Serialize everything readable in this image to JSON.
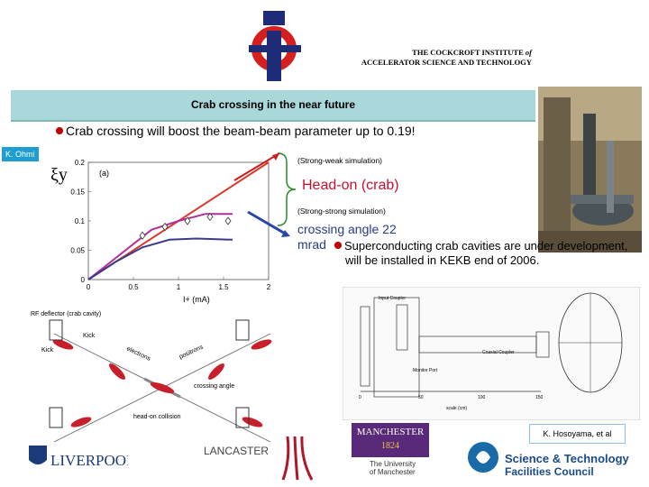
{
  "institute": {
    "line1_a": "THE COCKCROFT INSTITUTE",
    "line1_b": "of",
    "line2": "ACCELERATOR SCIENCE AND TECHNOLOGY"
  },
  "slide": {
    "title": "Crab crossing in the near future",
    "bullet1": "Crab crossing will boost the beam-beam parameter up to 0.19!",
    "author_tag": "K. Ohmi",
    "strong_weak": "(Strong-weak simulation)",
    "headon": "Head-on (crab)",
    "strong_strong": "(Strong-strong simulation)",
    "crossing_angle": "crossing angle 22 mrad",
    "bullet2": "Superconducting crab cavities are under development, will be installed in KEKB end of 2006.",
    "credit": "K. Hosoyama, et al"
  },
  "plot": {
    "panel_label": "(a)",
    "ylabel": "ξy",
    "xlabel": "I+ (mA)",
    "x_ticks": [
      "0",
      "0.5",
      "1",
      "1.5",
      "2"
    ],
    "y_ticks": [
      "0",
      "0.05",
      "0.1",
      "0.15",
      "0.2"
    ],
    "xlim": [
      0,
      2
    ],
    "ylim": [
      0,
      0.2
    ],
    "series": [
      {
        "color": "#d83a2c",
        "x": [
          0,
          2
        ],
        "y": [
          0,
          0.2
        ]
      },
      {
        "color": "#b0309a",
        "x": [
          0,
          0.7,
          1.0,
          1.3,
          1.6
        ],
        "y": [
          0,
          0.085,
          0.1,
          0.112,
          0.112
        ]
      },
      {
        "color": "#3c3c8c",
        "x": [
          0,
          0.3,
          0.6,
          0.9,
          1.2,
          1.6
        ],
        "y": [
          0,
          0.03,
          0.055,
          0.068,
          0.07,
          0.068
        ]
      }
    ],
    "markers": {
      "x": [
        0.6,
        0.85,
        1.1,
        1.35,
        1.55
      ],
      "y": [
        0.075,
        0.09,
        0.1,
        0.107,
        0.1
      ]
    }
  },
  "diagram": {
    "rf_deflector": "RF deflector (crab cavity)",
    "kick1": "Kick",
    "kick2": "Kick",
    "electrons": "electrons",
    "positrons": "positrons",
    "crossing_angle": "crossing angle",
    "headon_collision": "head-on collision"
  },
  "drawing": {
    "input_coupler": "Input Coupler",
    "coaxial_coupler": "Coaxial Coupler",
    "monitor_port": "Monitor Port",
    "scale_ticks": [
      "0",
      "50",
      "100",
      "150"
    ],
    "scale_unit": "scale (cm)"
  },
  "logos": {
    "liverpool": "LIVERPOOL",
    "lancaster": "LANCASTER",
    "manchester": "MANCHESTER",
    "manchester_year": "1824",
    "manchester2": "The University of Manchester",
    "stfc1": "Science & Technology",
    "stfc2": "Facilities Council"
  }
}
